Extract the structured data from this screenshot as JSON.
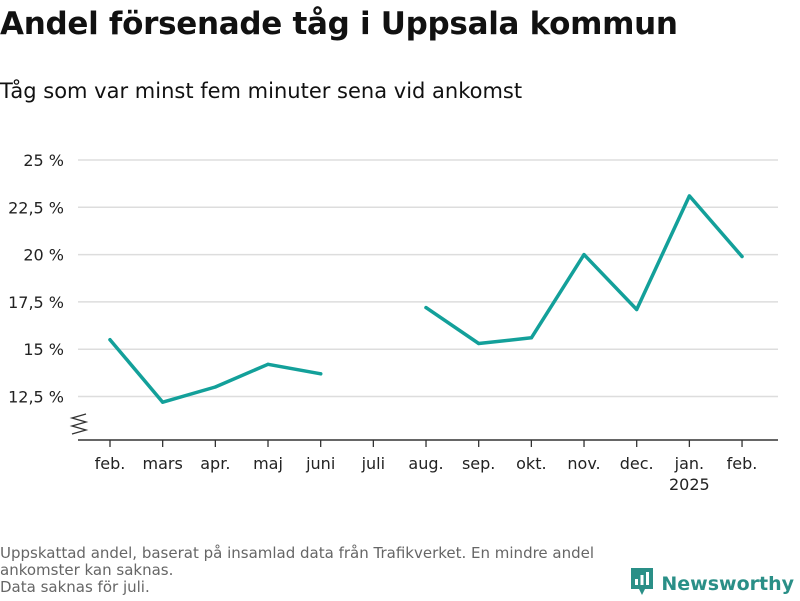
{
  "header": {
    "title": "Andel försenade tåg i Uppsala kommun",
    "subtitle": "Tåg som var minst fem minuter sena vid ankomst"
  },
  "chart_data": {
    "type": "line",
    "title": "Andel försenade tåg i Uppsala kommun",
    "subtitle": "Tåg som var minst fem minuter sena vid ankomst",
    "xlabel": "",
    "ylabel": "",
    "categories": [
      "feb.",
      "mars",
      "apr.",
      "maj",
      "juni",
      "juli",
      "aug.",
      "sep.",
      "okt.",
      "nov.",
      "dec.",
      "jan.",
      "feb."
    ],
    "category_sublabels": [
      "",
      "",
      "",
      "",
      "",
      "",
      "",
      "",
      "",
      "",
      "",
      "2025",
      ""
    ],
    "series": [
      {
        "values": [
          15.5,
          12.2,
          13.0,
          14.2,
          13.7,
          null,
          17.2,
          15.3,
          15.6,
          20.0,
          17.1,
          23.1,
          19.9
        ]
      }
    ],
    "y_ticks": [
      12.5,
      15,
      17.5,
      20,
      22.5,
      25
    ],
    "y_tick_labels": [
      "12,5 %",
      "15 %",
      "17,5 %",
      "20 %",
      "22,5 %",
      "25 %"
    ],
    "ylim": [
      10.2,
      25
    ],
    "y_axis_broken": true,
    "grid": true,
    "line_color": "#13a09a"
  },
  "footnote": {
    "lines": [
      "Uppskattad andel, baserat på insamlad data från Trafikverket. En mindre andel",
      "ankomster kan saknas.",
      "Data saknas för juli."
    ]
  },
  "brand": {
    "name": "Newsworthy",
    "icon": "newsworthy-logo-icon",
    "color": "#2a8f87"
  }
}
